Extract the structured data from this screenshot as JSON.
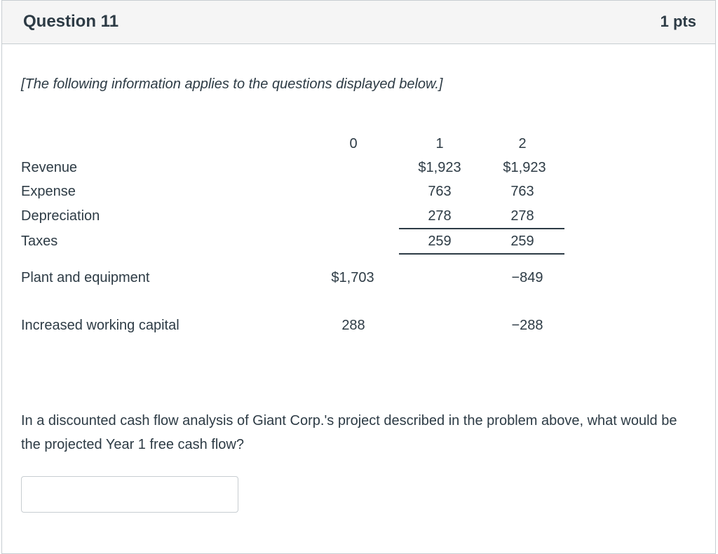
{
  "header": {
    "title": "Question 11",
    "points": "1 pts"
  },
  "intro": "[The following information applies to the questions displayed below.]",
  "table": {
    "columns": [
      "0",
      "1",
      "2"
    ],
    "rows": [
      {
        "label": "Revenue",
        "c0": "",
        "c1": "$1,923",
        "c2": "$1,923"
      },
      {
        "label": "Expense",
        "c0": "",
        "c1": "763",
        "c2": "763"
      },
      {
        "label": "Depreciation",
        "c0": "",
        "c1": "278",
        "c2": "278"
      },
      {
        "label": "Taxes",
        "c0": "",
        "c1": "259",
        "c2": "259"
      },
      {
        "label": "Plant and equipment",
        "c0": "$1,703",
        "c1": "",
        "c2": "−849"
      },
      {
        "label": "Increased working capital",
        "c0": "288",
        "c1": "",
        "c2": "−288"
      }
    ]
  },
  "question": "In a discounted cash flow analysis of Giant Corp.'s project described in the problem above, what would be the projected Year 1 free cash flow?",
  "answer": {
    "value": "",
    "placeholder": ""
  }
}
